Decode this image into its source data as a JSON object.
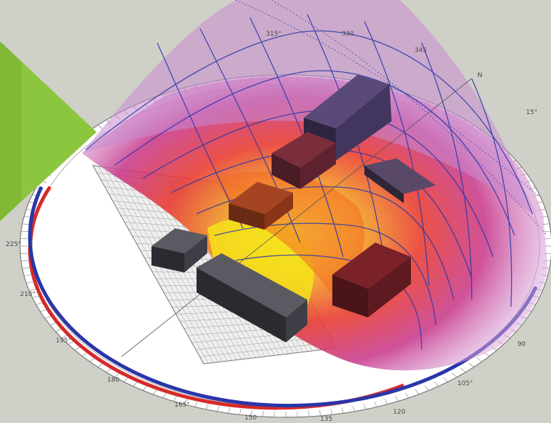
{
  "compass": {
    "labels": [
      {
        "id": "deg-315",
        "text": "315°"
      },
      {
        "id": "deg-330",
        "text": "330"
      },
      {
        "id": "deg-345",
        "text": "345"
      },
      {
        "id": "deg-n",
        "text": "N"
      },
      {
        "id": "deg-15",
        "text": "15°"
      },
      {
        "id": "deg-225",
        "text": "225°"
      },
      {
        "id": "deg-210",
        "text": "210°"
      },
      {
        "id": "deg-195",
        "text": "195°"
      },
      {
        "id": "deg-180",
        "text": "180"
      },
      {
        "id": "deg-165",
        "text": "165°"
      },
      {
        "id": "deg-150",
        "text": "150"
      },
      {
        "id": "deg-135",
        "text": "135"
      },
      {
        "id": "deg-120",
        "text": "120"
      },
      {
        "id": "deg-105",
        "text": "105°"
      },
      {
        "id": "deg-90",
        "text": "90"
      }
    ]
  },
  "colors": {
    "background": "#cfd0c8",
    "green_accent": "#8cc63f",
    "sunpath_blue": "#2a36a8",
    "arc_red": "#d62a2a",
    "hot_yellow": "#f4e21a",
    "hot_orange": "#f26a22",
    "hot_red": "#d9263a",
    "cool_magenta": "#c24aa6",
    "cool_lilac": "#d7a8dc",
    "building_dark": "#3c3a46"
  },
  "legend": {}
}
